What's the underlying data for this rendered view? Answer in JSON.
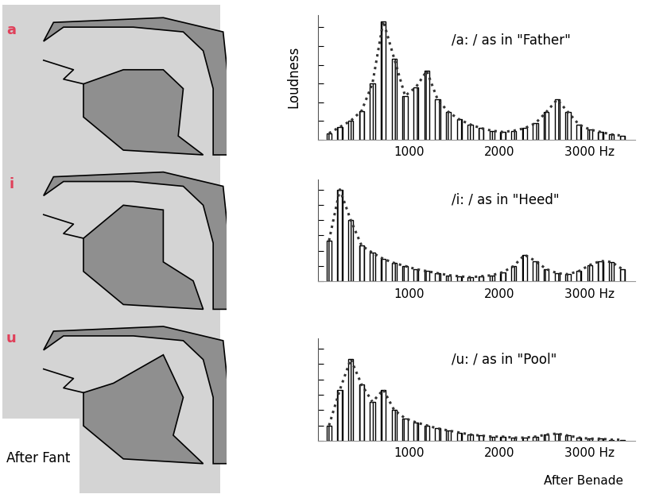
{
  "chart_data": [
    {
      "type": "bar",
      "title": "/a: / as in \"Father\"",
      "y_label": "Loudness",
      "x": [
        120,
        240,
        360,
        480,
        600,
        720,
        840,
        960,
        1080,
        1200,
        1320,
        1440,
        1560,
        1680,
        1800,
        1920,
        2040,
        2160,
        2280,
        2400,
        2520,
        2640,
        2760,
        2880,
        3000,
        3120,
        3240,
        3360
      ],
      "series": [
        {
          "type": "bar",
          "color": "#000000",
          "values": [
            0.5,
            1.0,
            1.5,
            2.3,
            4.5,
            9.5,
            6.5,
            3.5,
            4.2,
            5.5,
            3.2,
            2.2,
            1.6,
            1.2,
            0.9,
            0.7,
            0.6,
            0.7,
            0.9,
            1.3,
            2.2,
            3.2,
            2.2,
            1.2,
            0.8,
            0.6,
            0.4,
            0.3
          ]
        },
        {
          "type": "line",
          "color": "#333333",
          "line_style": "dotted",
          "values": [
            0.5,
            1.0,
            1.5,
            2.3,
            4.5,
            9.5,
            6.5,
            3.5,
            4.2,
            5.5,
            3.2,
            2.2,
            1.6,
            1.2,
            0.9,
            0.7,
            0.6,
            0.7,
            0.9,
            1.3,
            2.2,
            3.2,
            2.2,
            1.2,
            0.8,
            0.6,
            0.4,
            0.3
          ]
        }
      ],
      "xlim": [
        0,
        3500
      ],
      "xticks": [
        1000,
        2000,
        {
          "value": 3000,
          "label": "3000 Hz"
        }
      ],
      "ylim": [
        0,
        10
      ],
      "yticks": [
        0,
        1.5,
        3,
        4.5,
        6,
        7.5,
        9
      ],
      "tick_labels": "x"
    },
    {
      "type": "bar",
      "title": "/i: / as in \"Heed\"",
      "x": [
        120,
        240,
        360,
        480,
        600,
        720,
        840,
        960,
        1080,
        1200,
        1320,
        1440,
        1560,
        1680,
        1800,
        1920,
        2040,
        2160,
        2280,
        2400,
        2520,
        2640,
        2760,
        2880,
        3000,
        3120,
        3240,
        3360
      ],
      "series": [
        {
          "type": "bar",
          "color": "#000000",
          "values": [
            4.0,
            9.0,
            6.0,
            3.5,
            2.8,
            2.2,
            1.8,
            1.5,
            1.2,
            1.0,
            0.8,
            0.6,
            0.5,
            0.4,
            0.5,
            0.6,
            0.9,
            1.5,
            2.6,
            2.0,
            1.2,
            0.8,
            0.7,
            1.0,
            1.6,
            2.0,
            1.9,
            1.2
          ]
        },
        {
          "type": "line",
          "color": "#333333",
          "line_style": "dotted",
          "values": [
            4.0,
            9.0,
            6.0,
            3.5,
            2.8,
            2.2,
            1.8,
            1.5,
            1.2,
            1.0,
            0.8,
            0.6,
            0.5,
            0.4,
            0.5,
            0.6,
            0.9,
            1.5,
            2.6,
            2.0,
            1.2,
            0.8,
            0.7,
            1.0,
            1.6,
            2.0,
            1.9,
            1.2
          ]
        }
      ],
      "xlim": [
        0,
        3500
      ],
      "xticks": [
        1000,
        2000,
        {
          "value": 3000,
          "label": "3000 Hz"
        }
      ],
      "ylim": [
        0,
        10
      ],
      "yticks": [
        0,
        1.5,
        3,
        4.5,
        6,
        7.5,
        9
      ],
      "tick_labels": "x"
    },
    {
      "type": "bar",
      "title": "/u: / as in \"Pool\"",
      "x": [
        120,
        240,
        360,
        480,
        600,
        720,
        840,
        960,
        1080,
        1200,
        1320,
        1440,
        1560,
        1680,
        1800,
        1920,
        2040,
        2160,
        2280,
        2400,
        2520,
        2640,
        2760,
        2880,
        3000,
        3120,
        3240,
        3360
      ],
      "series": [
        {
          "type": "bar",
          "color": "#000000",
          "values": [
            1.5,
            5.0,
            8.0,
            5.5,
            3.8,
            5.0,
            3.0,
            2.2,
            1.8,
            1.5,
            1.2,
            1.0,
            0.8,
            0.6,
            0.5,
            0.4,
            0.4,
            0.3,
            0.3,
            0.4,
            0.6,
            0.7,
            0.5,
            0.3,
            0.2,
            0.2,
            0.1,
            0.1
          ]
        },
        {
          "type": "line",
          "color": "#333333",
          "line_style": "dotted",
          "values": [
            1.5,
            5.0,
            8.0,
            5.5,
            3.8,
            5.0,
            3.0,
            2.2,
            1.8,
            1.5,
            1.2,
            1.0,
            0.8,
            0.6,
            0.5,
            0.4,
            0.4,
            0.3,
            0.3,
            0.4,
            0.6,
            0.7,
            0.5,
            0.3,
            0.2,
            0.2,
            0.1,
            0.1
          ]
        }
      ],
      "xlim": [
        0,
        3500
      ],
      "xticks": [
        1000,
        2000,
        {
          "value": 3000,
          "label": "3000 Hz"
        }
      ],
      "ylim": [
        0,
        10
      ],
      "yticks": [
        0,
        1.5,
        3,
        4.5,
        6,
        7.5,
        9
      ],
      "tick_labels": "x"
    }
  ],
  "diagram": {
    "labels": [
      "a",
      "i",
      "u"
    ],
    "label_color": "#e0405a",
    "credit": "After Fant"
  },
  "credit": "After Benade"
}
